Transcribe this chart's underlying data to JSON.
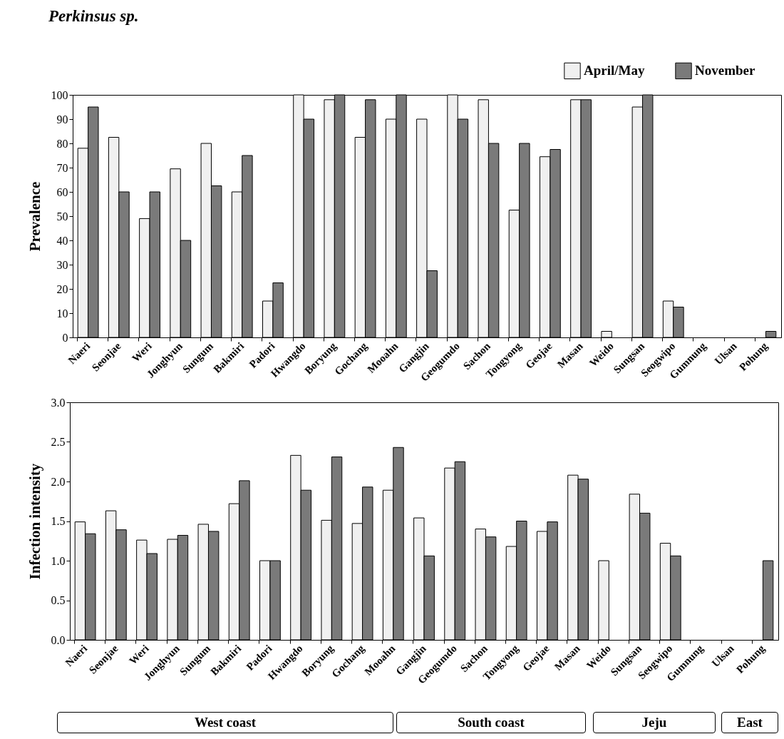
{
  "chart_data": [
    {
      "type": "bar",
      "title": "Perkinsus sp.",
      "ylabel": "Prevalence",
      "categories": [
        "Naeri",
        "Seonjae",
        "Weri",
        "Jonghyun",
        "Sungum",
        "Bakmiri",
        "Padori",
        "Hwangdo",
        "Boryung",
        "Gochang",
        "Mooahn",
        "Gangjin",
        "Geogumdo",
        "Sachon",
        "Tongyong",
        "Geojae",
        "Masan",
        "Weido",
        "Sungsan",
        "Seogwipo",
        "Gumnung",
        "Ulsan",
        "Pohung"
      ],
      "series": [
        {
          "name": "April/May",
          "color": "#f0f0f0",
          "values": [
            78,
            82.5,
            49,
            69.5,
            80,
            60,
            15,
            100,
            98,
            82.5,
            90,
            90,
            100,
            98,
            52.5,
            74.5,
            98,
            2.5,
            95,
            15,
            null,
            null,
            null
          ]
        },
        {
          "name": "November",
          "color": "#7a7a7a",
          "values": [
            95,
            60,
            60,
            40,
            62.5,
            75,
            22.5,
            90,
            100,
            98,
            100,
            27.5,
            90,
            80,
            80,
            77.5,
            98,
            null,
            100,
            12.5,
            null,
            null,
            2.5
          ]
        }
      ],
      "ylim": [
        0,
        100
      ],
      "yticks": [
        0,
        10,
        20,
        30,
        40,
        50,
        60,
        70,
        80,
        90,
        100
      ],
      "legend": "top right"
    },
    {
      "type": "bar",
      "ylabel": "Infection intensity",
      "categories": [
        "Naeri",
        "Seonjae",
        "Weri",
        "Jonghyun",
        "Sungum",
        "Bakmiri",
        "Padori",
        "Hwangdo",
        "Boryung",
        "Gochang",
        "Mooahn",
        "Gangjin",
        "Geogumdo",
        "Sachon",
        "Tongyong",
        "Geojae",
        "Masan",
        "Weido",
        "Sungsan",
        "Seogwipo",
        "Gumnung",
        "Ulsan",
        "Pohung"
      ],
      "series": [
        {
          "color": "#f0f0f0",
          "values": [
            1.49,
            1.63,
            1.26,
            1.27,
            1.46,
            1.72,
            1.0,
            2.33,
            1.51,
            1.47,
            1.89,
            1.54,
            2.17,
            1.4,
            1.18,
            1.37,
            2.08,
            1.0,
            1.84,
            1.22,
            null,
            null,
            null
          ]
        },
        {
          "color": "#7a7a7a",
          "values": [
            1.34,
            1.39,
            1.09,
            1.32,
            1.37,
            2.01,
            1.0,
            1.89,
            2.31,
            1.93,
            2.43,
            1.06,
            2.25,
            1.3,
            1.5,
            1.49,
            2.03,
            null,
            1.6,
            1.06,
            null,
            null,
            1.0
          ]
        }
      ],
      "ylim": [
        0,
        3
      ],
      "yticks": [
        {
          "value": 0,
          "label": "0.0"
        },
        {
          "value": 0.5,
          "label": "0.5"
        },
        {
          "value": 1,
          "label": "1.0"
        },
        {
          "value": 1.5,
          "label": "1.5"
        },
        {
          "value": 2,
          "label": "2.0"
        },
        {
          "value": 2.5,
          "label": "2.5"
        },
        {
          "value": 3,
          "label": "3.0"
        }
      ],
      "annotations": [
        "West coast",
        "South coast",
        "Jeju",
        "East"
      ]
    }
  ]
}
